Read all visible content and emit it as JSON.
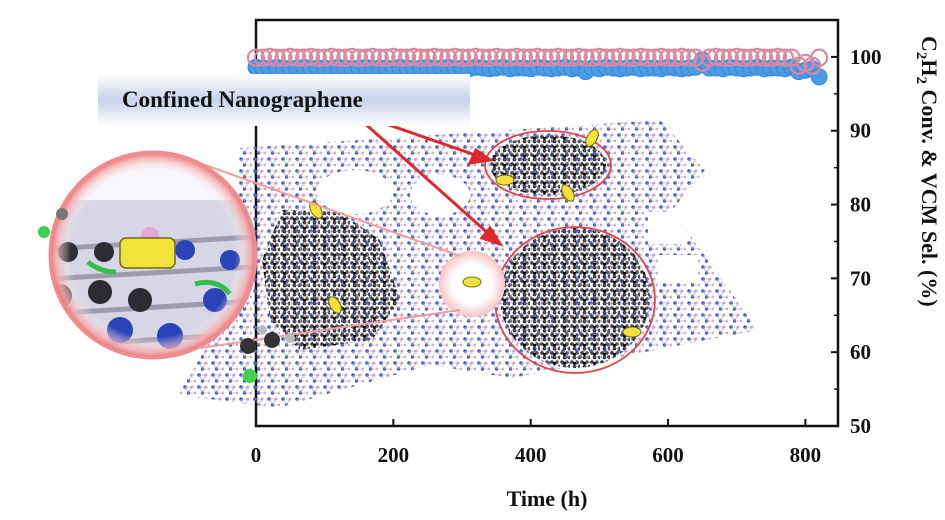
{
  "chart_data": {
    "type": "scatter",
    "xlabel": "Time (h)",
    "ylabel_parts": [
      "C",
      "2",
      "H",
      "2",
      " Conv. & VCM Sel. (%)"
    ],
    "xlim": [
      0,
      830
    ],
    "ylim": [
      50,
      105
    ],
    "x_ticks": [
      0,
      200,
      400,
      600,
      800
    ],
    "y_ticks": [
      50,
      60,
      70,
      80,
      90,
      100
    ],
    "grid": false,
    "y_axis_side": "right",
    "series": [
      {
        "marker": "filled-circle",
        "color": "#4a9be8",
        "x": [
          0,
          10,
          20,
          30,
          40,
          50,
          60,
          70,
          80,
          90,
          100,
          110,
          120,
          130,
          140,
          150,
          160,
          170,
          180,
          190,
          200,
          210,
          220,
          230,
          240,
          250,
          260,
          270,
          280,
          290,
          300,
          310,
          320,
          330,
          340,
          350,
          360,
          370,
          380,
          390,
          400,
          410,
          420,
          430,
          440,
          450,
          460,
          470,
          480,
          490,
          500,
          510,
          520,
          530,
          540,
          550,
          560,
          570,
          580,
          590,
          600,
          610,
          620,
          630,
          640,
          650,
          660,
          670,
          680,
          690,
          700,
          710,
          720,
          730,
          740,
          750,
          760,
          770,
          780,
          790,
          800,
          810,
          820
        ],
        "y": [
          98.6,
          98.5,
          98.4,
          98.6,
          98.5,
          98.4,
          98.5,
          98.6,
          98.4,
          98.5,
          98.5,
          98.4,
          98.6,
          98.5,
          98.4,
          98.5,
          98.6,
          98.4,
          98.5,
          98.5,
          98.4,
          98.6,
          98.5,
          98.4,
          98.5,
          98.6,
          98.4,
          98.5,
          98.6,
          98.4,
          98.5,
          98.4,
          98.6,
          98.5,
          98.4,
          98.5,
          98.6,
          98.4,
          98.5,
          98.5,
          98.4,
          98.6,
          98.5,
          98.4,
          98.5,
          98.6,
          98.4,
          98.5,
          98.0,
          98.5,
          98.4,
          98.6,
          98.5,
          98.4,
          98.5,
          98.6,
          98.4,
          98.5,
          98.5,
          98.4,
          98.6,
          98.5,
          98.4,
          98.5,
          98.6,
          99.6,
          98.5,
          98.5,
          98.4,
          98.6,
          98.5,
          98.4,
          98.5,
          98.6,
          98.4,
          98.5,
          98.5,
          98.4,
          98.6,
          98.0,
          98.2,
          98.4,
          97.3
        ]
      },
      {
        "marker": "open-circle",
        "color": "#d98aa0",
        "x": [
          0,
          10,
          20,
          30,
          40,
          50,
          60,
          70,
          80,
          90,
          100,
          110,
          120,
          130,
          140,
          150,
          160,
          170,
          180,
          190,
          200,
          210,
          220,
          230,
          240,
          250,
          260,
          270,
          280,
          290,
          300,
          310,
          320,
          330,
          340,
          350,
          360,
          370,
          380,
          390,
          400,
          410,
          420,
          430,
          440,
          450,
          460,
          470,
          480,
          490,
          500,
          510,
          520,
          530,
          540,
          550,
          560,
          570,
          580,
          590,
          600,
          610,
          620,
          630,
          640,
          650,
          660,
          670,
          680,
          690,
          700,
          710,
          720,
          730,
          740,
          750,
          760,
          770,
          780,
          790,
          800,
          810,
          820
        ],
        "y": [
          99.9,
          99.9,
          100,
          99.9,
          99.9,
          100,
          99.9,
          99.9,
          100,
          99.9,
          99.9,
          100,
          99.9,
          99.9,
          100,
          99.9,
          99.9,
          100,
          99.9,
          99.9,
          100,
          99.9,
          99.9,
          100,
          99.9,
          99.9,
          100,
          99.9,
          99.9,
          100,
          99.9,
          99.9,
          100,
          99.9,
          99.9,
          100,
          99.9,
          99.9,
          100,
          99.9,
          99.9,
          100,
          99.9,
          99.9,
          100,
          99.9,
          99.9,
          100,
          99.9,
          99.9,
          100,
          99.9,
          99.9,
          100,
          99.9,
          99.9,
          100,
          99.9,
          99.9,
          100,
          99.9,
          99.9,
          100,
          99.9,
          99.9,
          99.2,
          99.9,
          100,
          99.9,
          99.9,
          100,
          99.9,
          99.9,
          100,
          99.9,
          99.9,
          100,
          99.9,
          99.9,
          98.8,
          99.2,
          98.8,
          99.9
        ]
      }
    ],
    "annotations": [
      "Confined Nanographene"
    ]
  }
}
